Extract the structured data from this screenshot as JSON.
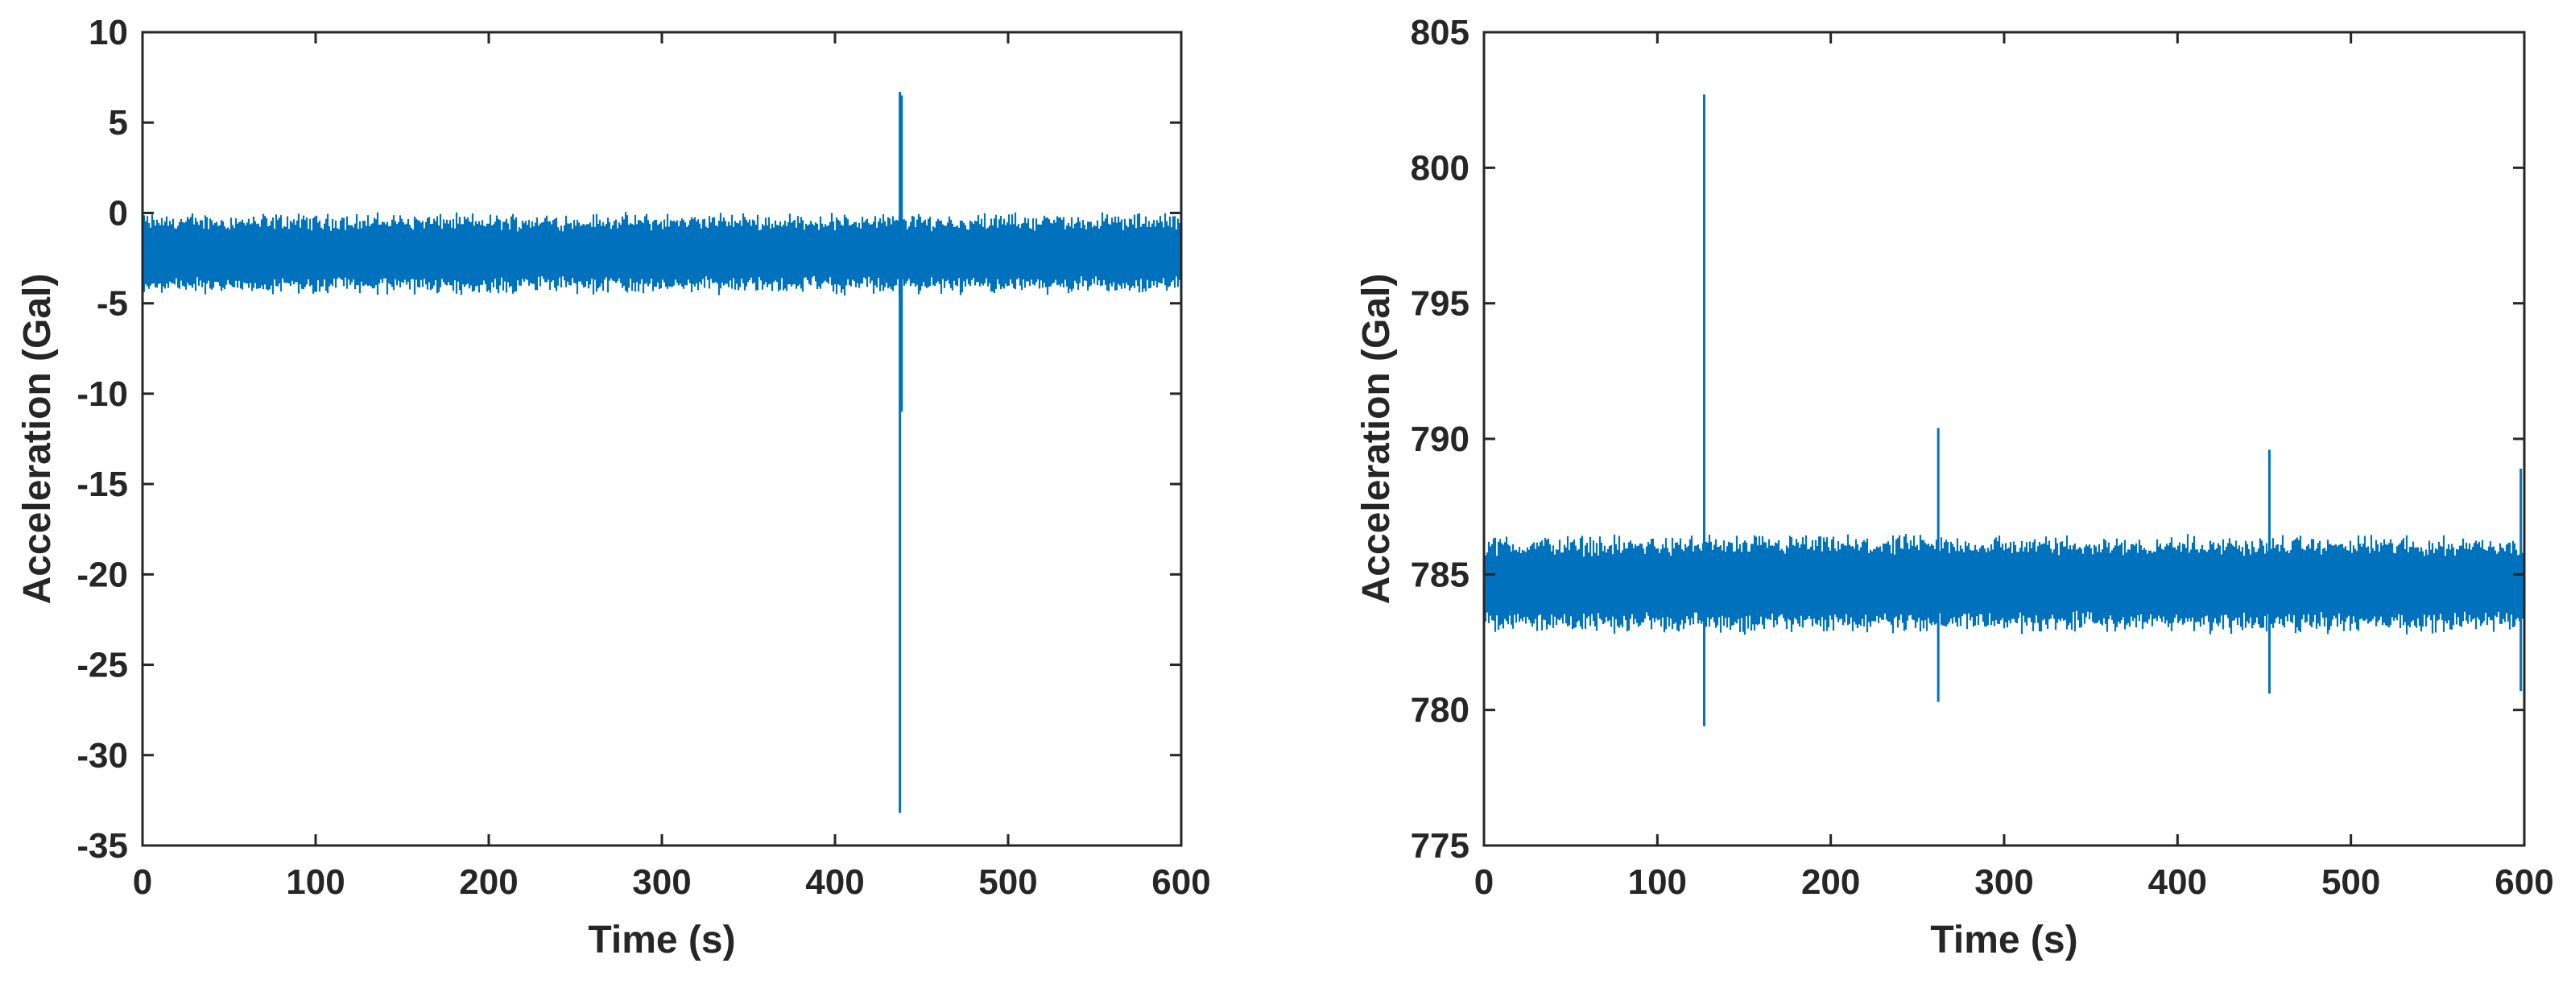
{
  "colors": {
    "signal": "#0072BD",
    "axis": "#262626",
    "background": "#ffffff"
  },
  "chart_data": [
    {
      "type": "line",
      "title": "",
      "xlabel": "Time (s)",
      "ylabel": "Acceleration (Gal)",
      "xlim": [
        0,
        600
      ],
      "ylim": [
        -35,
        10
      ],
      "xticks": [
        0,
        100,
        200,
        300,
        400,
        500,
        600
      ],
      "xtick_labels": [
        "0",
        "100",
        "200",
        "300",
        "400",
        "500",
        "600"
      ],
      "yticks": [
        10,
        5,
        0,
        -5,
        -10,
        -15,
        -20,
        -25,
        -30,
        -35
      ],
      "ytick_labels": [
        "10",
        "5",
        "0",
        "-5",
        "-10",
        "-15",
        "-20",
        "-25",
        "-30",
        "-35"
      ],
      "grid": false,
      "noise_band": [
        -4.3,
        -0.2
      ],
      "spikes": [
        {
          "x": 437.5,
          "y_max": 6.7,
          "y_min": -33.2
        },
        {
          "x": 438.5,
          "y_max": 6.5,
          "y_min": -11
        }
      ]
    },
    {
      "type": "line",
      "title": "",
      "xlabel": "Time (s)",
      "ylabel": "Acceleration (Gal)",
      "xlim": [
        0,
        600
      ],
      "ylim": [
        775,
        805
      ],
      "xticks": [
        0,
        100,
        200,
        300,
        400,
        500,
        600
      ],
      "xtick_labels": [
        "0",
        "100",
        "200",
        "300",
        "400",
        "500",
        "600"
      ],
      "yticks": [
        805,
        800,
        795,
        790,
        785,
        780,
        775
      ],
      "ytick_labels": [
        "805",
        "800",
        "795",
        "790",
        "785",
        "780",
        "775"
      ],
      "grid": false,
      "noise_band": [
        783,
        786.3
      ],
      "spikes": [
        {
          "x": 127,
          "y_max": 802.7,
          "y_min": 779.4
        },
        {
          "x": 262,
          "y_max": 790.4,
          "y_min": 780.3
        },
        {
          "x": 453,
          "y_max": 789.6,
          "y_min": 780.6
        },
        {
          "x": 598,
          "y_max": 788.9,
          "y_min": 780.7
        }
      ]
    }
  ]
}
